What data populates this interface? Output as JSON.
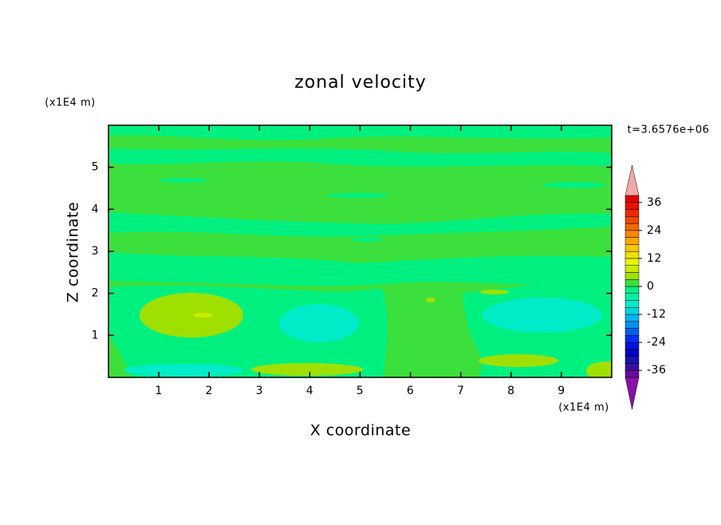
{
  "chart_data": {
    "type": "contour",
    "title": "zonal velocity",
    "x_label": "X coordinate",
    "y_label": "Z coordinate",
    "x_unit": "(x1E4 m)",
    "y_unit": "(x1E4 m)",
    "annotation": "t=3.6576e+06",
    "xlim": [
      0,
      10
    ],
    "ylim": [
      0,
      6
    ],
    "xticks": [
      1,
      2,
      3,
      4,
      5,
      6,
      7,
      8,
      9
    ],
    "yticks": [
      1,
      2,
      3,
      4,
      5
    ],
    "colorbar": {
      "levels": [
        -39,
        -36,
        -33,
        -30,
        -27,
        -24,
        -21,
        -18,
        -15,
        -12,
        -9,
        -6,
        -3,
        0,
        3,
        6,
        9,
        12,
        15,
        18,
        21,
        24,
        27,
        30,
        33,
        36,
        39
      ],
      "colors": [
        "#6a0aa0",
        "#3a10a0",
        "#1a10b4",
        "#0000c8",
        "#0010e0",
        "#0030f0",
        "#0060f0",
        "#0090f0",
        "#00b4f0",
        "#00d4e0",
        "#00ecc8",
        "#00f0a8",
        "#00f080",
        "#3ce03c",
        "#a0e000",
        "#c8ec00",
        "#e8f400",
        "#f0e000",
        "#f8c800",
        "#f8a800",
        "#f88800",
        "#f06800",
        "#f04800",
        "#f02800",
        "#e81000",
        "#e00000"
      ],
      "ticks": [
        -36,
        -24,
        -12,
        0,
        12,
        24,
        36
      ],
      "over_color": "#f4a8a8",
      "under_color": "#8a10a8"
    }
  }
}
